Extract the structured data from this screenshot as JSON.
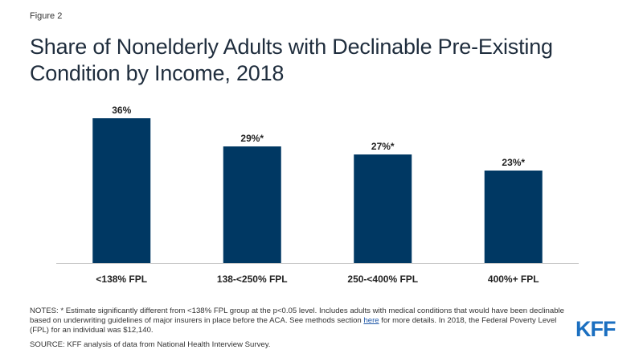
{
  "figure_label": "Figure 2",
  "title": "Share of Nonelderly Adults with Declinable Pre-Existing Condition by Income, 2018",
  "notes": {
    "before_link": "NOTES: * Estimate significantly different from <138% FPL group at the p<0.05 level. Includes adults with medical conditions that would have been declinable based on underwriting guidelines of major insurers in place before the ACA. See methods section ",
    "link_text": "here",
    "after_link": " for more details. In 2018, the Federal Poverty Level (FPL) for an individual was $12,140."
  },
  "source": "SOURCE: KFF analysis of data from National Health Interview Survey.",
  "logo_text": "KFF",
  "colors": {
    "bar": "#003863",
    "axis": "#c8c8c8",
    "logo": "#1b6fc0"
  },
  "chart_data": {
    "type": "bar",
    "title": "Share of Nonelderly Adults with Declinable Pre-Existing Condition by Income, 2018",
    "categories": [
      "<138% FPL",
      "138-<250% FPL",
      "250-<400% FPL",
      "400%+ FPL"
    ],
    "values": [
      36,
      29,
      27,
      23
    ],
    "data_labels": [
      "36%",
      "29%*",
      "27%*",
      "23%*"
    ],
    "unit": "%",
    "ylim": [
      0,
      40
    ],
    "grid": false,
    "legend": "none"
  }
}
